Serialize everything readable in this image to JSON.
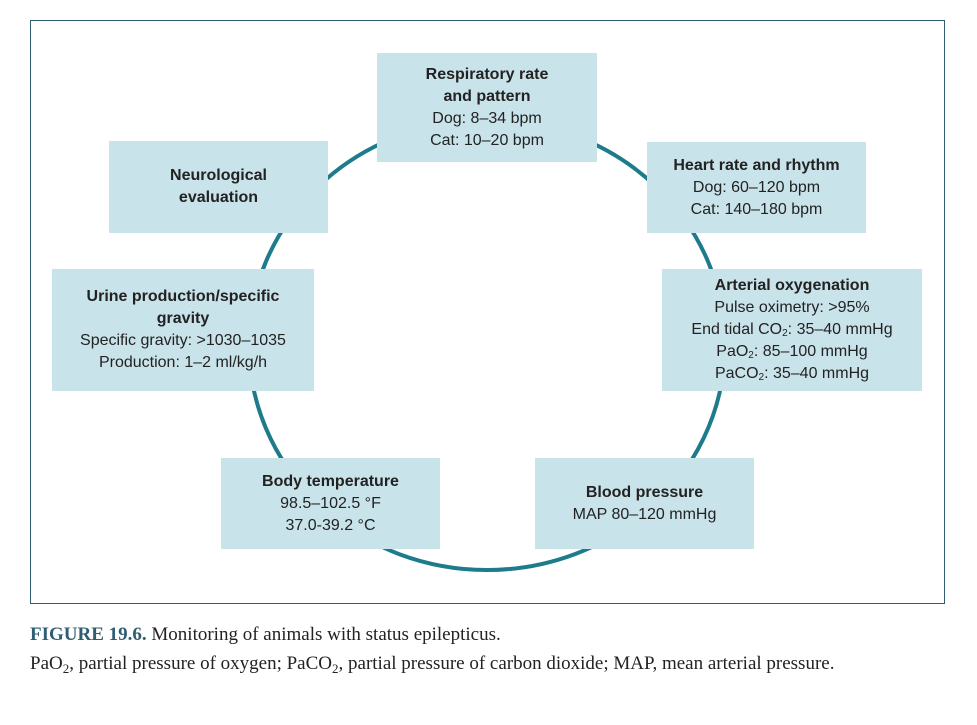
{
  "colors": {
    "ring": "#1d7b8c",
    "box_fill": "#c9e3ea",
    "frame_border": "#2f5d72",
    "figure_label": "#2f5d72"
  },
  "boxes": {
    "respiratory": {
      "title_1": "Respiratory rate",
      "title_2": "and pattern",
      "line_1": "Dog: 8–34 bpm",
      "line_2": "Cat: 10–20 bpm"
    },
    "heart": {
      "title": "Heart rate and rhythm",
      "line_1": "Dog: 60–120 bpm",
      "line_2": "Cat: 140–180 bpm"
    },
    "arterial": {
      "title": "Arterial oxygenation",
      "line_1": "Pulse oximetry: >95%",
      "line_2_pre": "End tidal CO",
      "line_2_sub": "2",
      "line_2_post": ": 35–40 mmHg",
      "line_3_pre": "PaO",
      "line_3_sub": "2",
      "line_3_post": ": 85–100 mmHg",
      "line_4_pre": "PaCO",
      "line_4_sub": "2",
      "line_4_post": ": 35–40 mmHg"
    },
    "blood_pressure": {
      "title": "Blood pressure",
      "line_1": "MAP 80–120 mmHg"
    },
    "body_temp": {
      "title": "Body temperature",
      "line_1": "98.5–102.5 °F",
      "line_2": "37.0-39.2 °C"
    },
    "urine": {
      "title_1": "Urine production/specific",
      "title_2": "gravity",
      "line_1": "Specific gravity: >1030–1035",
      "line_2": "Production: 1–2 ml/kg/h"
    },
    "neuro": {
      "title_1": "Neurological",
      "title_2": "evaluation"
    }
  },
  "caption": {
    "label": "FIGURE 19.6.",
    "title": " Monitoring of animals with status epilepticus.",
    "def_1_pre": "PaO",
    "def_1_sub": "2",
    "def_1_post": ", partial pressure of oxygen; PaCO",
    "def_2_sub": "2",
    "def_2_post": ", partial pressure of carbon dioxide; MAP, mean arterial pressure."
  }
}
